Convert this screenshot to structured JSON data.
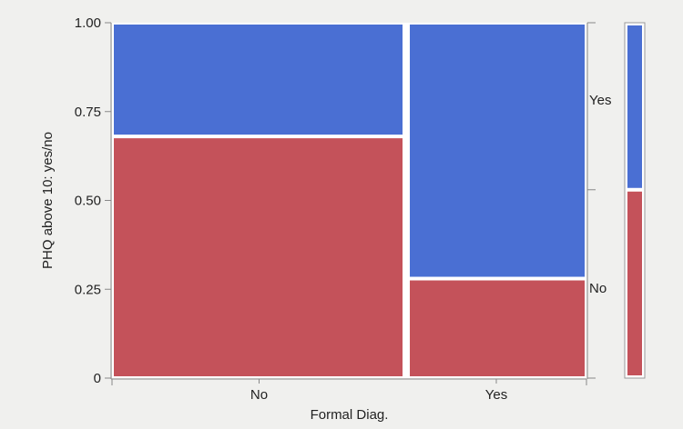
{
  "chart_data": {
    "type": "mosaic",
    "xlabel": "Formal Diag.",
    "ylabel": "PHQ above 10: yes/no",
    "categories": [
      "No",
      "Yes"
    ],
    "category_widths": [
      0.62,
      0.38
    ],
    "series": [
      {
        "name": "No",
        "values": [
          0.68,
          0.28
        ]
      },
      {
        "name": "Yes",
        "values": [
          0.32,
          0.72
        ]
      }
    ],
    "overall": {
      "No": 0.53,
      "Yes": 0.47
    },
    "yticks": [
      "0",
      "0.25",
      "0.50",
      "0.75",
      "1.00"
    ],
    "ylim": [
      0,
      1
    ],
    "colors": {
      "No": "#c4525a",
      "Yes": "#4a6fd3"
    }
  }
}
